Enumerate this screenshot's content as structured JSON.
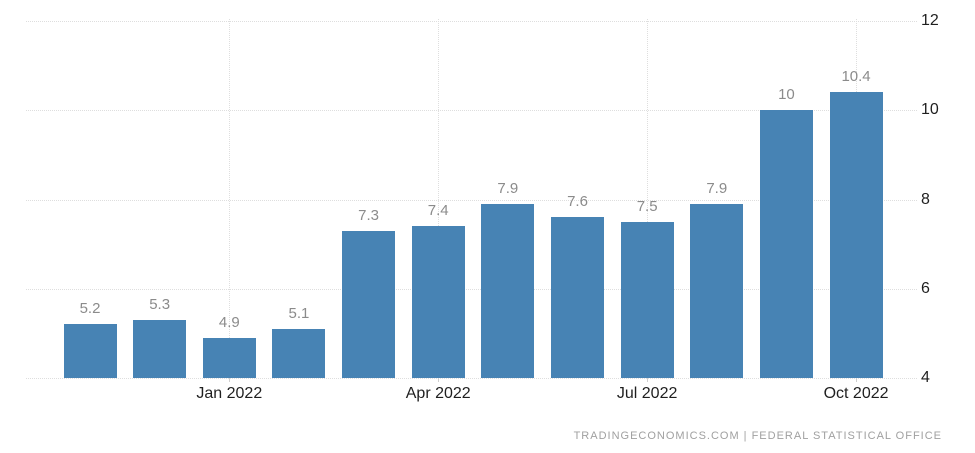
{
  "chart_data": {
    "type": "bar",
    "title": "",
    "values": [
      5.2,
      5.3,
      4.9,
      5.1,
      7.3,
      7.4,
      7.9,
      7.6,
      7.5,
      7.9,
      10,
      10.4
    ],
    "value_labels": [
      "5.2",
      "5.3",
      "4.9",
      "5.1",
      "7.3",
      "7.4",
      "7.9",
      "7.6",
      "7.5",
      "7.9",
      "10",
      "10.4"
    ],
    "x_axis": {
      "ticks": [
        {
          "bar_index": 2,
          "label": "Jan 2022"
        },
        {
          "bar_index": 5,
          "label": "Apr 2022"
        },
        {
          "bar_index": 8,
          "label": "Jul 2022"
        },
        {
          "bar_index": 11,
          "label": "Oct 2022"
        }
      ]
    },
    "y_axis": {
      "ticks": [
        "12",
        "10",
        "8",
        "6",
        "4"
      ],
      "tick_values": [
        12,
        10,
        8,
        6,
        4
      ],
      "range": [
        4,
        12
      ],
      "position": "right"
    },
    "grid": {
      "horizontal": true,
      "vertical": "at-labeled-x-ticks",
      "style": "dotted"
    },
    "legend": "none",
    "colors": {
      "bar": "#4783b4",
      "grid": "#dedede",
      "axis_label": "#1f1f1f",
      "value_label": "#8b8b8b",
      "source_text": "#a0a0a0",
      "background": "#ffffff"
    }
  },
  "footer": {
    "source_text": "TRADINGECONOMICS.COM | FEDERAL STATISTICAL OFFICE"
  }
}
